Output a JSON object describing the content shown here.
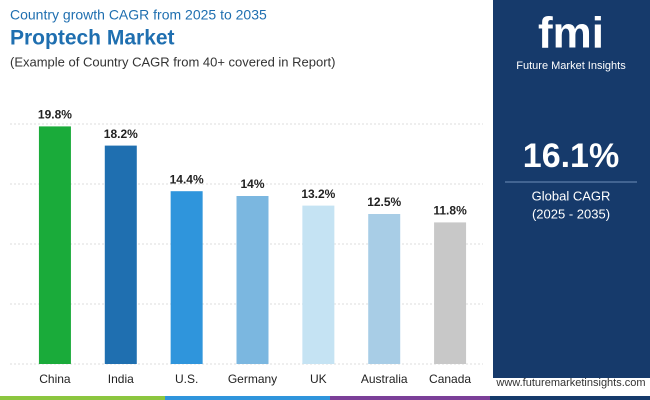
{
  "chart_data": {
    "type": "bar",
    "kicker": "Country growth CAGR from 2025 to 2035",
    "title": "Proptech Market",
    "subtitle": "(Example of Country CAGR from 40+ covered in Report)",
    "categories": [
      "China",
      "India",
      "U.S.",
      "Germany",
      "UK",
      "Australia",
      "Canada"
    ],
    "values": [
      19.8,
      18.2,
      14.4,
      14,
      13.2,
      12.5,
      11.8
    ],
    "value_labels": [
      "19.8%",
      "18.2%",
      "14.4%",
      "14%",
      "13.2%",
      "12.5%",
      "11.8%"
    ],
    "colors": [
      "#1aab3a",
      "#1f6fb0",
      "#2f95dc",
      "#7bb7e0",
      "#c5e3f3",
      "#a8cde6",
      "#c8c8c8"
    ],
    "ylim": [
      0,
      20
    ],
    "yticks": [
      0,
      5,
      10,
      15,
      20
    ],
    "grid": true
  },
  "sidebar": {
    "brand": "fmi",
    "brand_name": "Future Market Insights",
    "stat": "16.1%",
    "stat_label": "Global CAGR",
    "period": "(2025 - 2035)"
  },
  "footer": {
    "url": "www.futuremarketinsights.com"
  }
}
